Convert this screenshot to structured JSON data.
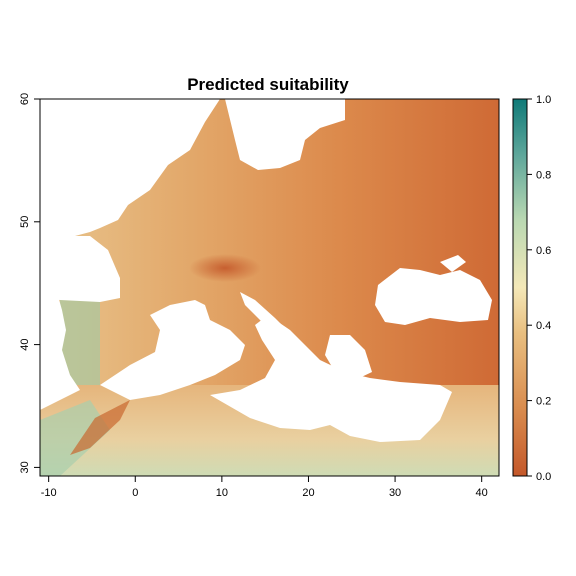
{
  "chart_data": {
    "type": "heatmap",
    "title": "Predicted suitability",
    "xlabel": "",
    "ylabel": "",
    "xlim": [
      -11,
      42
    ],
    "ylim": [
      29.3,
      60
    ],
    "x_ticks": [
      -10,
      0,
      10,
      20,
      30,
      40
    ],
    "x_tick_labels": [
      "-10",
      "0",
      "10",
      "20",
      "30",
      "40"
    ],
    "y_ticks": [
      30,
      40,
      50,
      60
    ],
    "y_tick_labels": [
      "30",
      "40",
      "50",
      "60"
    ],
    "colorbar": {
      "range": [
        0,
        1
      ],
      "ticks": [
        0.0,
        0.2,
        0.4,
        0.6,
        0.8,
        1.0
      ],
      "tick_labels": [
        "0.0",
        "0.2",
        "0.4",
        "0.6",
        "0.8",
        "1.0"
      ],
      "colors": [
        "#c4582a",
        "#d98c4e",
        "#e9bf80",
        "#f4e8b8",
        "#b9d8b2",
        "#5fa79b",
        "#0f7a78"
      ]
    },
    "legend_placement": "right",
    "grid": false
  }
}
